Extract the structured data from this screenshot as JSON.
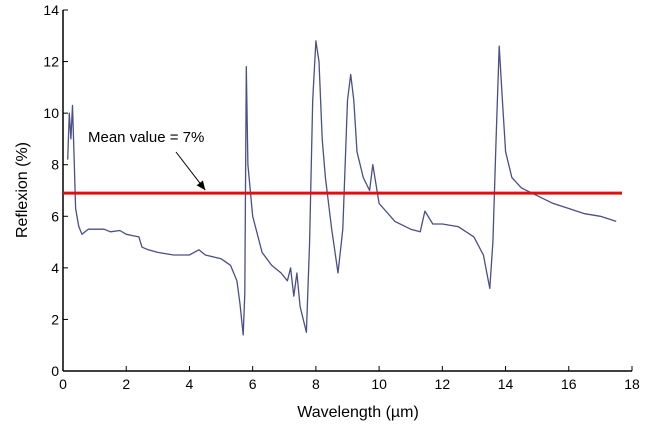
{
  "chart_data": {
    "type": "line",
    "xlabel": "Wavelength (µm)",
    "ylabel": "Reflexion (%)",
    "xlim": [
      0,
      18
    ],
    "ylim": [
      0,
      14
    ],
    "xticks": [
      0,
      2,
      4,
      6,
      8,
      10,
      12,
      14,
      16,
      18
    ],
    "yticks": [
      0,
      2,
      4,
      6,
      8,
      10,
      12,
      14
    ],
    "grid": false,
    "series": [
      {
        "color": "#4a4f86",
        "points": [
          [
            0.15,
            8.2
          ],
          [
            0.2,
            10.0
          ],
          [
            0.25,
            9.0
          ],
          [
            0.3,
            10.3
          ],
          [
            0.35,
            8.3
          ],
          [
            0.4,
            6.3
          ],
          [
            0.5,
            5.6
          ],
          [
            0.6,
            5.3
          ],
          [
            0.8,
            5.5
          ],
          [
            1.0,
            5.5
          ],
          [
            1.3,
            5.5
          ],
          [
            1.5,
            5.4
          ],
          [
            1.8,
            5.45
          ],
          [
            2.0,
            5.3
          ],
          [
            2.2,
            5.25
          ],
          [
            2.4,
            5.2
          ],
          [
            2.5,
            4.8
          ],
          [
            2.7,
            4.7
          ],
          [
            3.0,
            4.6
          ],
          [
            3.5,
            4.5
          ],
          [
            4.0,
            4.5
          ],
          [
            4.3,
            4.7
          ],
          [
            4.5,
            4.5
          ],
          [
            5.0,
            4.35
          ],
          [
            5.3,
            4.1
          ],
          [
            5.5,
            3.5
          ],
          [
            5.6,
            2.6
          ],
          [
            5.7,
            1.4
          ],
          [
            5.75,
            3.0
          ],
          [
            5.8,
            11.8
          ],
          [
            5.85,
            8.0
          ],
          [
            6.0,
            6.0
          ],
          [
            6.3,
            4.6
          ],
          [
            6.6,
            4.1
          ],
          [
            6.9,
            3.8
          ],
          [
            7.1,
            3.5
          ],
          [
            7.2,
            4.0
          ],
          [
            7.3,
            2.9
          ],
          [
            7.4,
            3.8
          ],
          [
            7.5,
            2.5
          ],
          [
            7.7,
            1.5
          ],
          [
            7.8,
            5.0
          ],
          [
            7.9,
            10.5
          ],
          [
            8.0,
            12.8
          ],
          [
            8.1,
            12.0
          ],
          [
            8.2,
            9.0
          ],
          [
            8.3,
            7.5
          ],
          [
            8.5,
            5.5
          ],
          [
            8.7,
            3.8
          ],
          [
            8.85,
            5.5
          ],
          [
            9.0,
            10.5
          ],
          [
            9.1,
            11.5
          ],
          [
            9.2,
            10.5
          ],
          [
            9.3,
            8.5
          ],
          [
            9.5,
            7.5
          ],
          [
            9.7,
            7.0
          ],
          [
            9.8,
            8.0
          ],
          [
            10.0,
            6.5
          ],
          [
            10.5,
            5.8
          ],
          [
            11.0,
            5.5
          ],
          [
            11.3,
            5.4
          ],
          [
            11.45,
            6.2
          ],
          [
            11.7,
            5.7
          ],
          [
            12.0,
            5.7
          ],
          [
            12.5,
            5.6
          ],
          [
            13.0,
            5.2
          ],
          [
            13.3,
            4.5
          ],
          [
            13.5,
            3.2
          ],
          [
            13.6,
            5.0
          ],
          [
            13.7,
            9.0
          ],
          [
            13.8,
            12.6
          ],
          [
            13.9,
            10.5
          ],
          [
            14.0,
            8.5
          ],
          [
            14.2,
            7.5
          ],
          [
            14.5,
            7.1
          ],
          [
            15.0,
            6.8
          ],
          [
            15.5,
            6.5
          ],
          [
            16.0,
            6.3
          ],
          [
            16.5,
            6.1
          ],
          [
            17.0,
            6.0
          ],
          [
            17.5,
            5.8
          ]
        ]
      }
    ],
    "mean_line": {
      "y": 6.9,
      "color": "#e01010"
    },
    "annotation": {
      "text": "Mean value = 7%",
      "arrow_to": [
        4.5,
        6.9
      ]
    }
  }
}
